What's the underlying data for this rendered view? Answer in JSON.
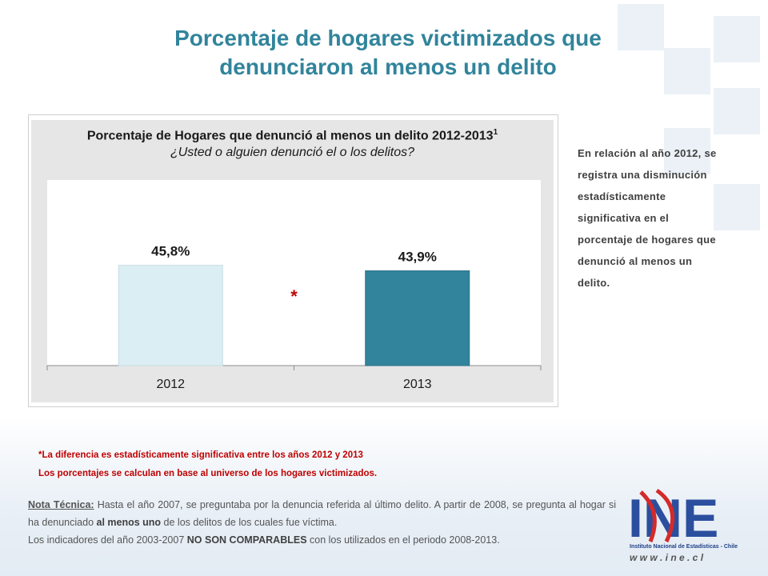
{
  "page": {
    "title_line1": "Porcentaje de hogares victimizados que",
    "title_line2": "denunciaron al menos un delito",
    "accent_color": "#31849b"
  },
  "side_text": "En relación al año 2012, se registra una disminución estadísticamente significativa en el porcentaje de hogares que denunció al menos un delito.",
  "notes": {
    "significance": "*La diferencia es estadísticamente significativa entre los años 2012 y 2013",
    "base": "Los porcentajes se calculan en base al universo de los hogares victimizados.",
    "technical_label": "Nota Técnica:",
    "technical_part1": " Hasta el año 2007, se preguntaba por la denuncia referida al último delito. A partir de 2008, se pregunta al hogar si ha denunciado ",
    "technical_bold1": "al menos uno",
    "technical_part2": " de los delitos de los cuales fue víctima.",
    "technical_part3": "Los indicadores del año 2003-2007 ",
    "technical_bold2": "NO SON COMPARABLES",
    "technical_part4": " con los utilizados en el periodo 2008-2013."
  },
  "logo": {
    "letters": "INE",
    "caption": "Instituto Nacional de Estadísticas - Chile",
    "url": "w w w . i n e . c l",
    "icon": "ine-logo-icon"
  },
  "chart_data": {
    "type": "bar",
    "title": "Porcentaje de Hogares que denunció al menos un delito 2012-2013",
    "title_superscript": "1",
    "subtitle": "¿Usted o alguien denunció el o los delitos?",
    "categories": [
      "2012",
      "2013"
    ],
    "values": [
      45.8,
      43.9
    ],
    "value_labels": [
      "45,8%",
      "43,9%"
    ],
    "bar_colors": [
      "#daeef3",
      "#31849b"
    ],
    "ylim": [
      0,
      100
    ],
    "significance_marker": "*",
    "grid": false,
    "legend": "none"
  }
}
